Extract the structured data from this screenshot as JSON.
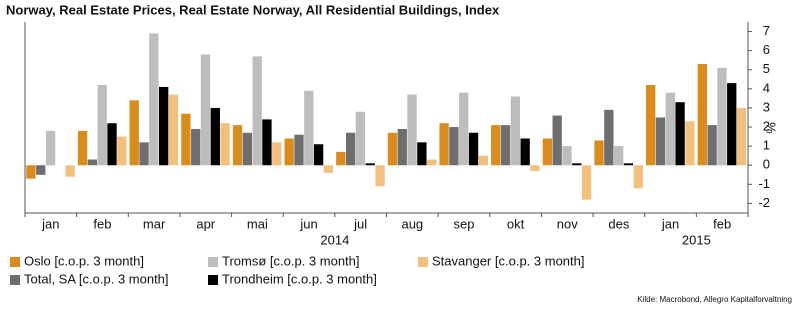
{
  "chart_data": {
    "type": "bar",
    "title": "Norway, Real Estate Prices, Real Estate Norway, All Residential Buildings, Index",
    "categories": [
      "jan",
      "feb",
      "mar",
      "apr",
      "mai",
      "jun",
      "jul",
      "aug",
      "sep",
      "okt",
      "nov",
      "des",
      "jan",
      "feb"
    ],
    "x_groups": [
      "2014",
      "2015"
    ],
    "y_axis_label": "%",
    "source": "Kilde: Macrobond, Allegro Kapitalforvaltning",
    "ylim": [
      -2.5,
      7.5
    ],
    "yticks": [
      -2,
      -1,
      0,
      1,
      2,
      3,
      4,
      5,
      6,
      7
    ],
    "series": [
      {
        "name": "Oslo [c.o.p. 3 month]",
        "color": "#d98c1e",
        "values": [
          -0.7,
          1.8,
          3.4,
          2.7,
          2.1,
          1.4,
          0.7,
          1.7,
          2.2,
          2.1,
          1.4,
          1.3,
          4.2,
          5.3
        ]
      },
      {
        "name": "Tromsø [c.o.p. 3 month]",
        "color": "#bdbdbd",
        "values": [
          1.8,
          4.2,
          6.9,
          5.8,
          5.7,
          3.9,
          2.8,
          3.7,
          3.8,
          3.6,
          1.0,
          1.0,
          3.8,
          5.1
        ]
      },
      {
        "name": "Stavanger [c.o.p. 3 month]",
        "color": "#f2c07e",
        "values": [
          -0.6,
          1.5,
          3.7,
          2.2,
          1.2,
          -0.4,
          -1.1,
          0.3,
          0.5,
          -0.3,
          -1.8,
          -1.2,
          2.3,
          3.0
        ]
      },
      {
        "name": "Total, SA [c.o.p. 3 month]",
        "color": "#6e6e6e",
        "values": [
          -0.5,
          0.3,
          1.2,
          1.9,
          1.7,
          1.6,
          1.7,
          1.9,
          2.0,
          2.1,
          2.6,
          2.9,
          2.5,
          2.1
        ]
      },
      {
        "name": "Trondheim [c.o.p. 3 month]",
        "color": "#000000",
        "values": [
          0,
          2.2,
          4.1,
          3.0,
          2.4,
          1.1,
          0.1,
          1.2,
          1.7,
          1.4,
          0.1,
          0.1,
          3.3,
          4.3
        ]
      }
    ],
    "bar_order": [
      0,
      3,
      1,
      4,
      2
    ]
  }
}
